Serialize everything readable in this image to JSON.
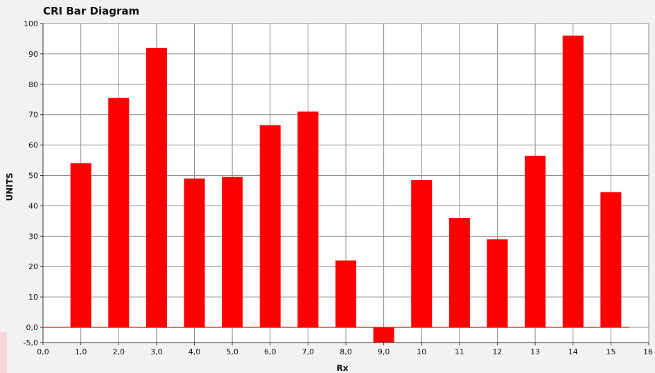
{
  "chart_data": {
    "type": "bar",
    "title": "CRI Bar Diagram",
    "xlabel": "Rx",
    "ylabel": "UNITS",
    "xlim": [
      0,
      16
    ],
    "ylim": [
      -5,
      100
    ],
    "x": [
      1,
      2,
      3,
      4,
      5,
      6,
      7,
      8,
      9,
      10,
      11,
      12,
      13,
      14,
      15
    ],
    "values": [
      54,
      75.5,
      92,
      49,
      49.5,
      66.5,
      71,
      22,
      -5,
      48.5,
      36,
      29,
      56.5,
      96,
      44.5
    ],
    "xticks": [
      {
        "v": 0,
        "label": "0,0"
      },
      {
        "v": 1,
        "label": "1,0"
      },
      {
        "v": 2,
        "label": "2,0"
      },
      {
        "v": 3,
        "label": "3,0"
      },
      {
        "v": 4,
        "label": "4,0"
      },
      {
        "v": 5,
        "label": "5,0"
      },
      {
        "v": 6,
        "label": "6,0"
      },
      {
        "v": 7,
        "label": "7,0"
      },
      {
        "v": 8,
        "label": "8,0"
      },
      {
        "v": 9,
        "label": "9,0"
      },
      {
        "v": 10,
        "label": "10"
      },
      {
        "v": 11,
        "label": "11"
      },
      {
        "v": 12,
        "label": "12"
      },
      {
        "v": 13,
        "label": "13"
      },
      {
        "v": 14,
        "label": "14"
      },
      {
        "v": 15,
        "label": "15"
      },
      {
        "v": 16,
        "label": "16"
      }
    ],
    "yticks": [
      {
        "v": 100,
        "label": "100"
      },
      {
        "v": 90,
        "label": "90"
      },
      {
        "v": 80,
        "label": "80"
      },
      {
        "v": 70,
        "label": "70"
      },
      {
        "v": 60,
        "label": "60"
      },
      {
        "v": 50,
        "label": "50"
      },
      {
        "v": 40,
        "label": "40"
      },
      {
        "v": 30,
        "label": "30"
      },
      {
        "v": 20,
        "label": "20"
      },
      {
        "v": 10,
        "label": "10"
      },
      {
        "v": 0,
        "label": "0,0"
      },
      {
        "v": -5,
        "label": "-5,0"
      }
    ],
    "grid": true,
    "bar_color": "#ff0000",
    "baseline_color": "#ff0000"
  }
}
